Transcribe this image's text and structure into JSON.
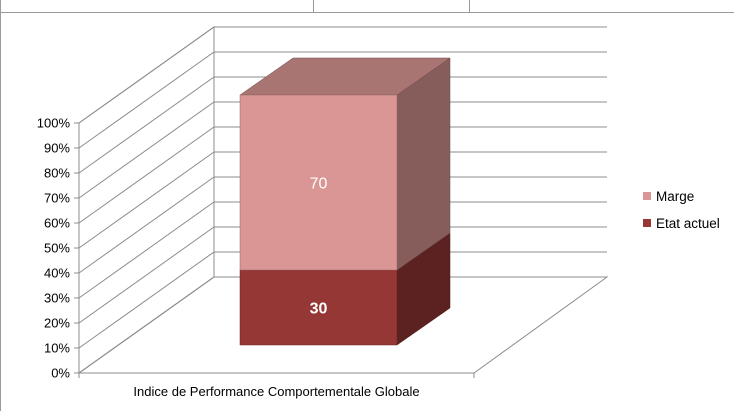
{
  "chart_data": {
    "type": "bar",
    "stacked": true,
    "three_d": true,
    "categories": [
      "Indice de Performance Comportementale Globale"
    ],
    "series": [
      {
        "name": "Etat actuel",
        "values": [
          30
        ],
        "color": "#953735",
        "label_color": "#ffffff",
        "label_bold": true
      },
      {
        "name": "Marge",
        "values": [
          70
        ],
        "color": "#d99694",
        "label_color": "#ffffff",
        "label_bold": false
      }
    ],
    "y_ticks": [
      "0%",
      "10%",
      "20%",
      "30%",
      "40%",
      "50%",
      "60%",
      "70%",
      "80%",
      "90%",
      "100%"
    ],
    "ylim": [
      0,
      100
    ],
    "grid": true,
    "legend_position": "right",
    "title": "",
    "xlabel": "",
    "ylabel": ""
  }
}
